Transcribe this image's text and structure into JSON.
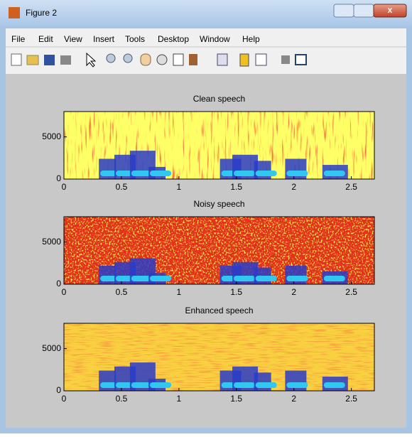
{
  "window": {
    "title": "Figure 2",
    "menu": [
      "File",
      "Edit",
      "View",
      "Insert",
      "Tools",
      "Desktop",
      "Window",
      "Help"
    ]
  },
  "chart_data": [
    {
      "type": "spectrogram",
      "title": "Clean speech",
      "xlim": [
        0,
        2.7
      ],
      "ylim": [
        0,
        8000
      ],
      "xticks": [
        0,
        0.5,
        1,
        1.5,
        2,
        2.5
      ],
      "yticks": [
        0,
        5000
      ],
      "color": "#ffff66"
    },
    {
      "type": "spectrogram",
      "title": "Noisy speech",
      "xlim": [
        0,
        2.7
      ],
      "ylim": [
        0,
        8000
      ],
      "xticks": [
        0,
        0.5,
        1,
        1.5,
        2,
        2.5
      ],
      "yticks": [
        0,
        5000
      ],
      "color": "#e0301a"
    },
    {
      "type": "spectrogram",
      "title": "Enhanced speech",
      "xlim": [
        0,
        2.7
      ],
      "ylim": [
        0,
        8000
      ],
      "xticks": [
        0,
        0.5,
        1,
        1.5,
        2,
        2.5
      ],
      "yticks": [
        0,
        5000
      ],
      "color": "#f8d040"
    }
  ]
}
